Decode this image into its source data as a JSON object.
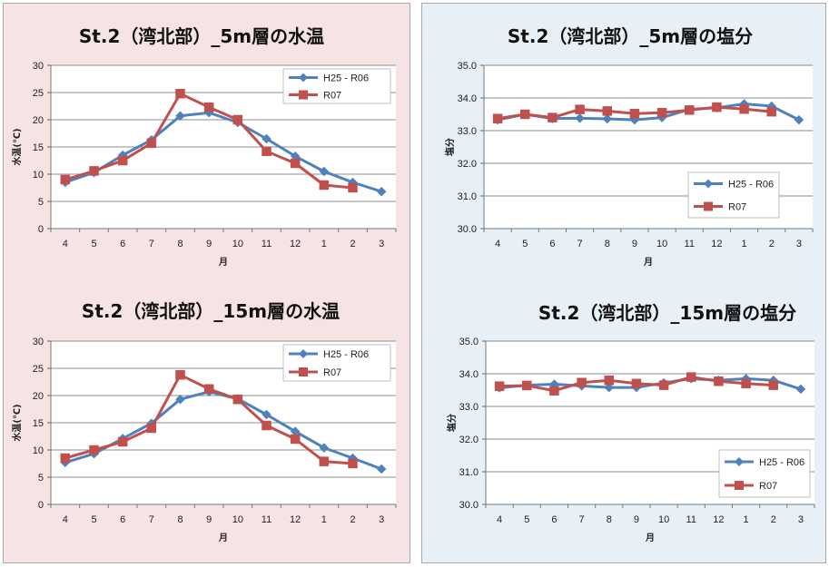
{
  "theme": {
    "panel_left_bg": "#f6e4e4",
    "panel_right_bg": "#e6f0f6",
    "series1_color": "#4f81bd",
    "series2_color": "#c0504d",
    "grid_color": "#8c8c8c"
  },
  "chart_data": [
    {
      "type": "line",
      "title": "St.2（湾北部）_5m層の水温",
      "xlabel": "月",
      "ylabel": "水温(℃)",
      "categories": [
        "4",
        "5",
        "6",
        "7",
        "8",
        "9",
        "10",
        "11",
        "12",
        "1",
        "2",
        "3"
      ],
      "ylim": [
        0,
        30
      ],
      "yticks": [
        "0",
        "5",
        "10",
        "15",
        "20",
        "25",
        "30"
      ],
      "ytick_values": [
        0,
        5,
        10,
        15,
        20,
        25,
        30
      ],
      "legend": [
        "H25 - R06",
        "R07"
      ],
      "series": [
        {
          "name": "H25 - R06",
          "values": [
            8.5,
            10.3,
            13.5,
            16.3,
            20.7,
            21.3,
            19.5,
            16.5,
            13.3,
            10.5,
            8.5,
            6.8
          ]
        },
        {
          "name": "R07",
          "values": [
            9.0,
            10.6,
            12.5,
            15.7,
            24.8,
            22.3,
            20.0,
            14.2,
            12.0,
            8.0,
            7.5,
            null
          ]
        }
      ]
    },
    {
      "type": "line",
      "title": "St.2（湾北部）_5m層の塩分",
      "xlabel": "月",
      "ylabel": "塩分",
      "categories": [
        "4",
        "5",
        "6",
        "7",
        "8",
        "9",
        "10",
        "11",
        "12",
        "1",
        "2",
        "3"
      ],
      "ylim": [
        30,
        35
      ],
      "yticks": [
        "30.0",
        "31.0",
        "32.0",
        "33.0",
        "34.0",
        "35.0"
      ],
      "ytick_values": [
        30,
        31,
        32,
        33,
        34,
        35
      ],
      "legend": [
        "H25 - R06",
        "R07"
      ],
      "series": [
        {
          "name": "H25 - R06",
          "values": [
            33.33,
            33.5,
            33.37,
            33.38,
            33.36,
            33.33,
            33.4,
            33.65,
            33.7,
            33.82,
            33.75,
            33.33
          ]
        },
        {
          "name": "R07",
          "values": [
            33.37,
            33.5,
            33.4,
            33.65,
            33.6,
            33.52,
            33.55,
            33.63,
            33.72,
            33.66,
            33.58,
            null
          ]
        }
      ]
    },
    {
      "type": "line",
      "title": "St.2（湾北部）_15m層の水温",
      "xlabel": "月",
      "ylabel": "水温(℃)",
      "categories": [
        "4",
        "5",
        "6",
        "7",
        "8",
        "9",
        "10",
        "11",
        "12",
        "1",
        "2",
        "3"
      ],
      "ylim": [
        0,
        30
      ],
      "yticks": [
        "0",
        "5",
        "10",
        "15",
        "20",
        "25",
        "30"
      ],
      "ytick_values": [
        0,
        5,
        10,
        15,
        20,
        25,
        30
      ],
      "legend": [
        "H25 - R06",
        "R07"
      ],
      "series": [
        {
          "name": "H25 - R06",
          "values": [
            7.7,
            9.3,
            12.1,
            14.9,
            19.3,
            20.7,
            19.4,
            16.5,
            13.4,
            10.4,
            8.5,
            6.5
          ]
        },
        {
          "name": "R07",
          "values": [
            8.5,
            10.0,
            11.5,
            14.0,
            23.8,
            21.2,
            19.3,
            14.5,
            12.0,
            7.9,
            7.5,
            null
          ]
        }
      ]
    },
    {
      "type": "line",
      "title": "St.2（湾北部）_15m層の塩分",
      "xlabel": "月",
      "ylabel": "塩分",
      "categories": [
        "4",
        "5",
        "6",
        "7",
        "8",
        "9",
        "10",
        "11",
        "12",
        "1",
        "2",
        "3"
      ],
      "ylim": [
        30,
        35
      ],
      "yticks": [
        "30.0",
        "31.0",
        "32.0",
        "33.0",
        "34.0",
        "35.0"
      ],
      "ytick_values": [
        30,
        31,
        32,
        33,
        34,
        35
      ],
      "legend": [
        "H25 - R06",
        "R07"
      ],
      "series": [
        {
          "name": "H25 - R06",
          "values": [
            33.57,
            33.65,
            33.68,
            33.63,
            33.58,
            33.58,
            33.72,
            33.85,
            33.8,
            33.85,
            33.8,
            33.53
          ]
        },
        {
          "name": "R07",
          "values": [
            33.62,
            33.64,
            33.48,
            33.73,
            33.8,
            33.7,
            33.65,
            33.9,
            33.77,
            33.7,
            33.65,
            null
          ]
        }
      ]
    }
  ]
}
